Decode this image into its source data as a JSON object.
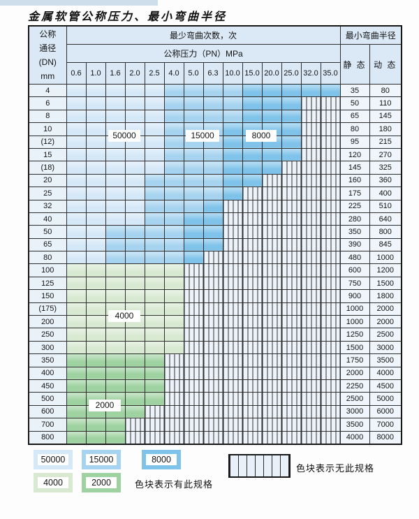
{
  "page": {
    "title": "金属软管公称压力、最小弯曲半径"
  },
  "table": {
    "header": {
      "dn_lines": [
        "公称",
        "通径",
        "(DN)",
        "mm"
      ],
      "cycles_title": "最少弯曲次数，次",
      "pressure_title": "公称压力（PN）MPa",
      "radius_title": "最小弯曲半径",
      "static_label": "静 态",
      "dynamic_label": "动 态",
      "pressures": [
        "0.6",
        "1.0",
        "1.6",
        "2.0",
        "2.5",
        "4.0",
        "5.0",
        "6.3",
        "10.0",
        "15.0",
        "20.0",
        "25.0",
        "32.0",
        "35.0"
      ]
    },
    "zone_colors": {
      "A": "#d5e8f7",
      "B": "#a6d3ef",
      "C": "#7fc3ea",
      "G": "#d8e9d2",
      "H": "#9ed2a0"
    },
    "zone_labels": [
      {
        "text": "50000"
      },
      {
        "text": "15000"
      },
      {
        "text": "8000"
      },
      {
        "text": "4000"
      },
      {
        "text": "2000"
      }
    ],
    "rows": [
      {
        "dn": "4",
        "zones": "AAAAABBBBCCCCC",
        "static": "35",
        "dynamic": "80"
      },
      {
        "dn": "6",
        "zones": "AAAAABBBBCCCXX",
        "static": "50",
        "dynamic": "110"
      },
      {
        "dn": "8",
        "zones": "AAAAABBBBCCCXX",
        "static": "65",
        "dynamic": "145"
      },
      {
        "dn": "10",
        "zones": "AAAAABBBCCCCXX",
        "static": "80",
        "dynamic": "180"
      },
      {
        "dn": "(12)",
        "zones": "AAAAABBBCCCCXX",
        "static": "95",
        "dynamic": "215"
      },
      {
        "dn": "15",
        "zones": "AAAAABBBCCCCXX",
        "static": "120",
        "dynamic": "270"
      },
      {
        "dn": "(18)",
        "zones": "AAAAABBBCCCXXX",
        "static": "145",
        "dynamic": "325"
      },
      {
        "dn": "20",
        "zones": "AAAABBBBCCXXXX",
        "static": "160",
        "dynamic": "360"
      },
      {
        "dn": "25",
        "zones": "AAAABBBBCXXXXX",
        "static": "175",
        "dynamic": "400"
      },
      {
        "dn": "32",
        "zones": "AAAABBBCXXXXXX",
        "static": "225",
        "dynamic": "510"
      },
      {
        "dn": "40",
        "zones": "AAAABBCCXXXXXX",
        "static": "280",
        "dynamic": "640"
      },
      {
        "dn": "50",
        "zones": "AABBBBCCXXXXXX",
        "static": "350",
        "dynamic": "800"
      },
      {
        "dn": "65",
        "zones": "AABBBBCCXXXXXX",
        "static": "390",
        "dynamic": "845"
      },
      {
        "dn": "80",
        "zones": "AABBBBCXXXXXXX",
        "static": "480",
        "dynamic": "1000"
      },
      {
        "dn": "100",
        "zones": "GGGGGGXXXXXXXX",
        "static": "600",
        "dynamic": "1200"
      },
      {
        "dn": "125",
        "zones": "GGGGGGXXXXXXXX",
        "static": "750",
        "dynamic": "1500"
      },
      {
        "dn": "150",
        "zones": "GGGGGGXXXXXXXX",
        "static": "900",
        "dynamic": "1800"
      },
      {
        "dn": "(175)",
        "zones": "GGGGGGXXXXXXXX",
        "static": "1000",
        "dynamic": "2000"
      },
      {
        "dn": "200",
        "zones": "GGGGGGXXXXXXXX",
        "static": "1000",
        "dynamic": "2000"
      },
      {
        "dn": "250",
        "zones": "GGGGGGXXXXXXXX",
        "static": "1250",
        "dynamic": "2500"
      },
      {
        "dn": "300",
        "zones": "GGGGGGXXXXXXXX",
        "static": "1500",
        "dynamic": "3000"
      },
      {
        "dn": "350",
        "zones": "HHHHHXXXXXXXXX",
        "static": "1750",
        "dynamic": "3500"
      },
      {
        "dn": "400",
        "zones": "HHHHHXXXXXXXXX",
        "static": "2000",
        "dynamic": "4000"
      },
      {
        "dn": "450",
        "zones": "HHHHHXXXXXXXXX",
        "static": "2250",
        "dynamic": "4500"
      },
      {
        "dn": "500",
        "zones": "HHHHHXXXXXXXXX",
        "static": "2500",
        "dynamic": "5000"
      },
      {
        "dn": "600",
        "zones": "HHHHXXXXXXXXXX",
        "static": "3000",
        "dynamic": "6000"
      },
      {
        "dn": "700",
        "zones": "HHHXXXXXXXXXXX",
        "static": "3500",
        "dynamic": "7000"
      },
      {
        "dn": "800",
        "zones": "HHHXXXXXXXXXXX",
        "static": "4000",
        "dynamic": "8000"
      }
    ]
  },
  "legend": {
    "swatches": [
      {
        "label": "50000",
        "zone": "A",
        "color": "#d5e8f7"
      },
      {
        "label": "15000",
        "zone": "B",
        "color": "#a6d3ef"
      },
      {
        "label": "8000",
        "zone": "C",
        "color": "#7fc3ea"
      },
      {
        "label": "4000",
        "zone": "G",
        "color": "#d8e9d2"
      },
      {
        "label": "2000",
        "zone": "H",
        "color": "#9ed2a0"
      }
    ],
    "has_spec_text": "色块表示有此规格",
    "no_spec_text": "色块表示无此规格"
  }
}
